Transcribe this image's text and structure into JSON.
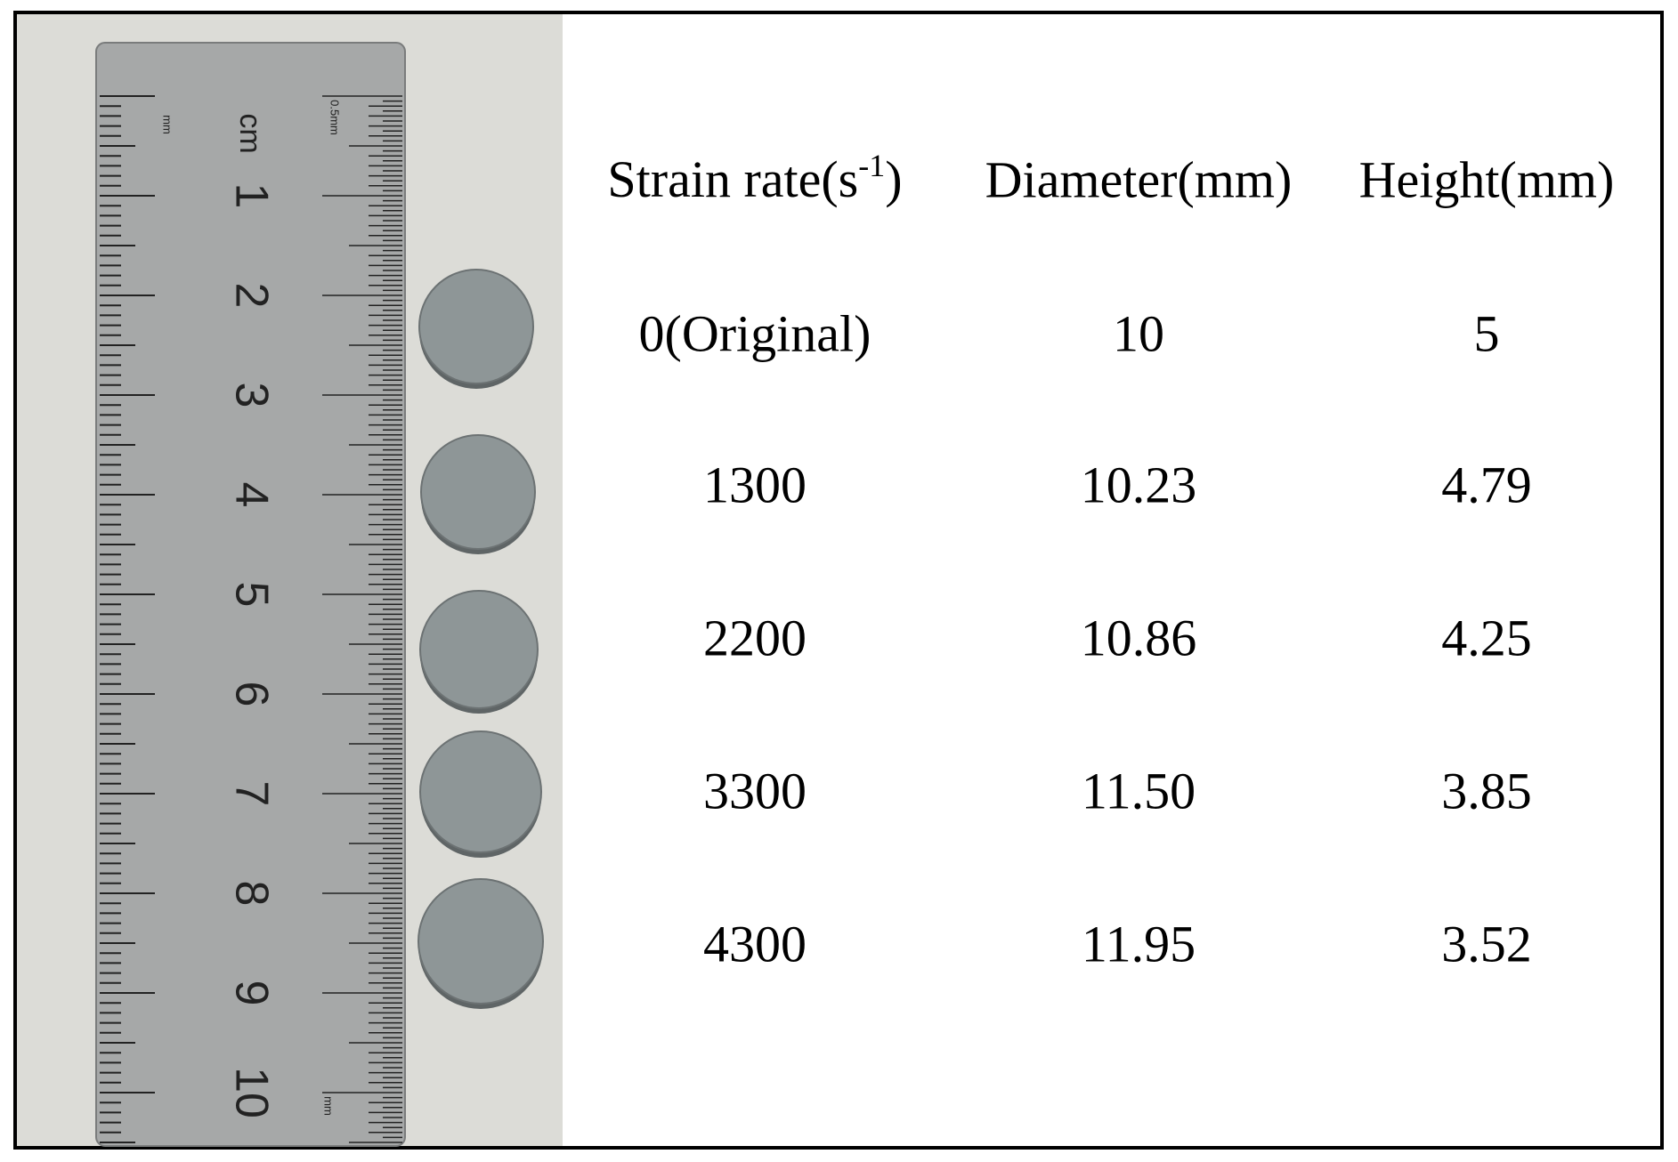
{
  "ruler": {
    "unit": "cm",
    "mm_label": "mm",
    "half_label": "0.5mm",
    "numbers": [
      "1",
      "2",
      "3",
      "4",
      "5",
      "6",
      "7",
      "8",
      "9",
      "10"
    ]
  },
  "table": {
    "header": [
      {
        "text": "Strain rate(s",
        "sup": "-1",
        "close": ")"
      },
      "Diameter(mm)",
      "Height(mm)"
    ],
    "rows": [
      [
        "0(Original)",
        "10",
        "5"
      ],
      [
        "1300",
        "10.23",
        "4.79"
      ],
      [
        "2200",
        "10.86",
        "4.25"
      ],
      [
        "3300",
        "11.50",
        "3.85"
      ],
      [
        "4300",
        "11.95",
        "3.52"
      ]
    ]
  }
}
